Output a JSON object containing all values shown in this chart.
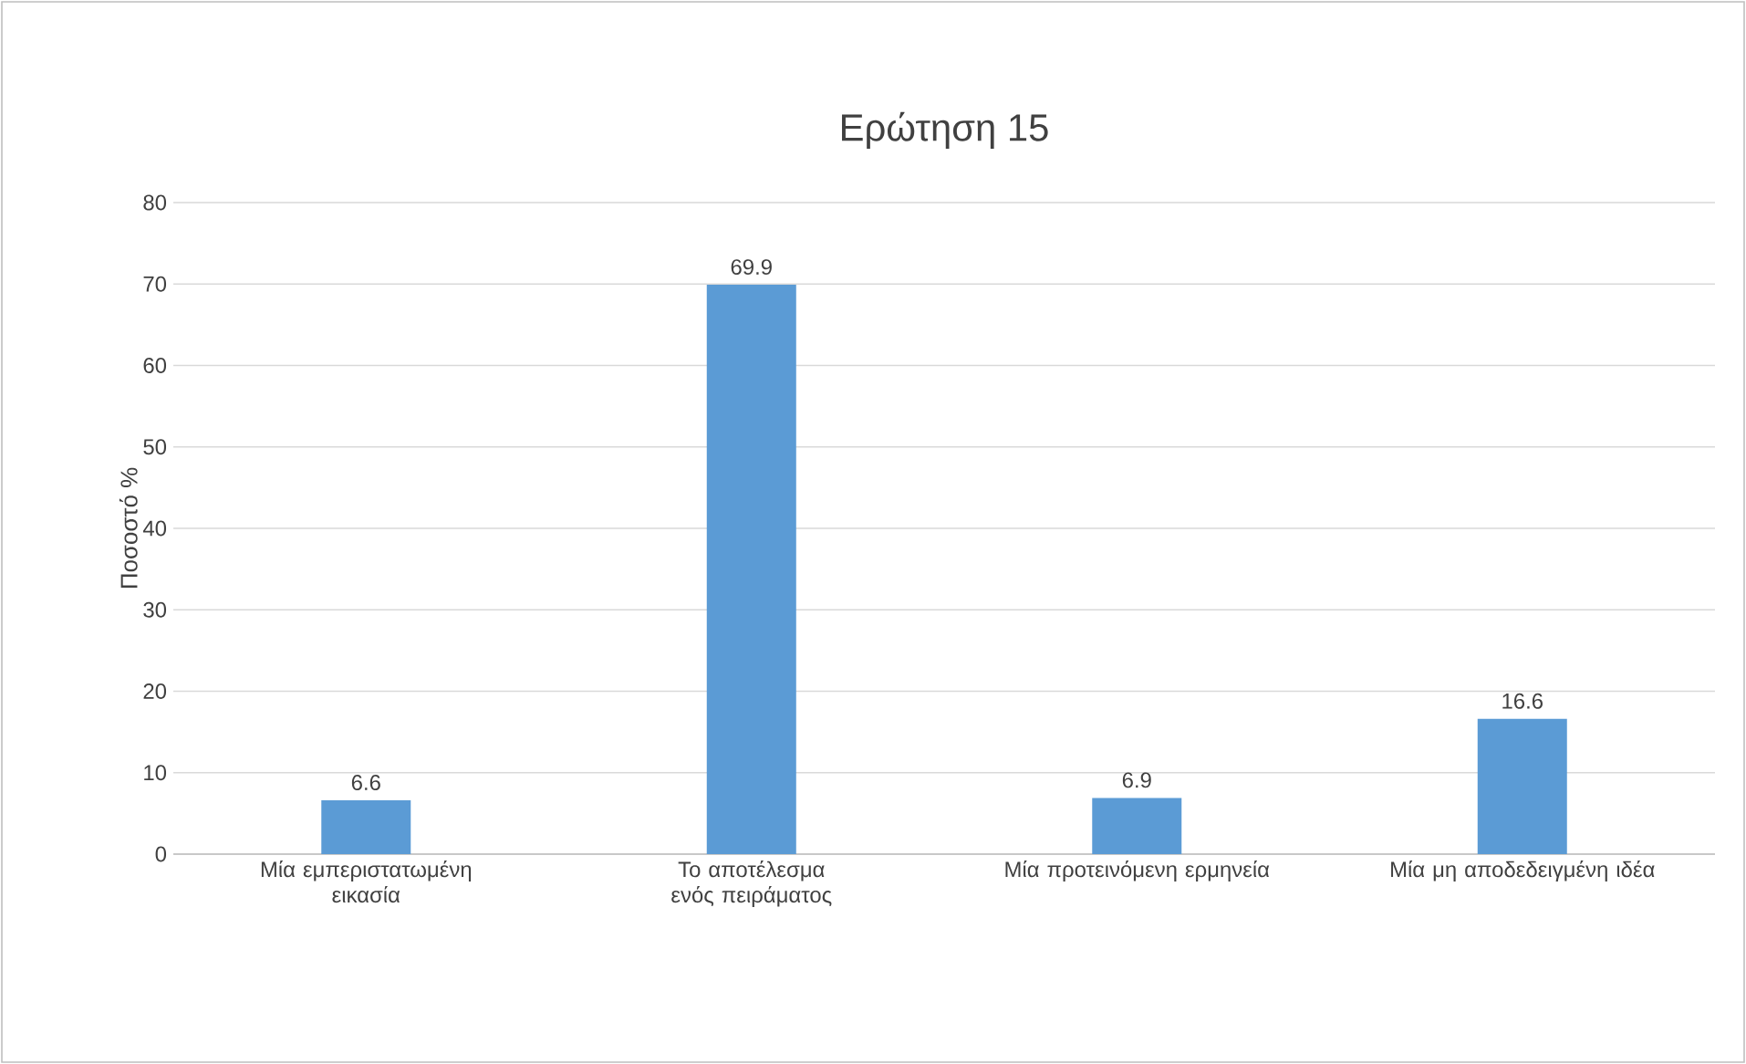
{
  "chart_data": {
    "type": "bar",
    "title": "Ερώτηση 15",
    "ylabel": "Ποσοστό %",
    "categories": [
      "Μία εμπεριστατωμένη εικασία",
      "Το αποτέλεσμα ενός πειράματος",
      "Μία προτεινόμενη ερμηνεία",
      "Μία μη αποδεδειγμένη ιδέα"
    ],
    "values": [
      6.6,
      69.9,
      6.9,
      16.6
    ],
    "color": "#5b9bd5",
    "ylim": [
      0,
      80
    ],
    "yticks": [
      0,
      10,
      20,
      30,
      40,
      50,
      60,
      70,
      80
    ],
    "grid": "y",
    "data_labels": true
  }
}
